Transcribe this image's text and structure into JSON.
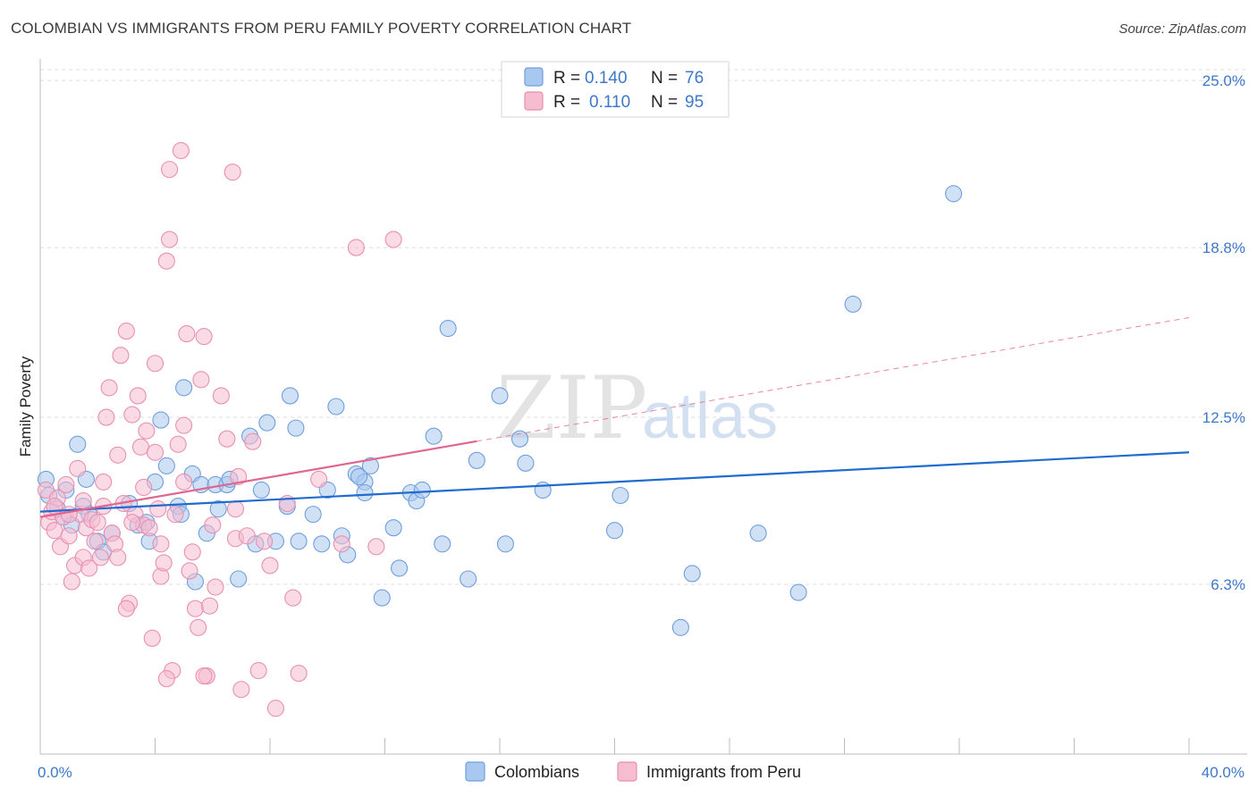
{
  "title": "COLOMBIAN VS IMMIGRANTS FROM PERU FAMILY POVERTY CORRELATION CHART",
  "source": "Source: ZipAtlas.com",
  "watermark": {
    "part1": "ZIP",
    "part2": "atlas"
  },
  "colors": {
    "blue_fill": "#a9c8ef",
    "blue_stroke": "#6f9edd",
    "blue_line": "#1f6bd0",
    "pink_fill": "#f6bcd0",
    "pink_stroke": "#e890b0",
    "pink_line": "#e0668f",
    "tick_text": "#3d78c9",
    "grid": "#dcdcdc"
  },
  "legend": {
    "rows": [
      {
        "r_label": "R =",
        "r_value": "0.140",
        "n_label": "N =",
        "n_value": "76"
      },
      {
        "r_label": "R =",
        "r_value": "0.110",
        "n_label": "N =",
        "n_value": "95"
      }
    ]
  },
  "chart_data": {
    "type": "scatter",
    "title": "COLOMBIAN VS IMMIGRANTS FROM PERU FAMILY POVERTY CORRELATION CHART",
    "xlabel": "",
    "ylabel": "Family Poverty",
    "xlim": [
      0,
      40
    ],
    "ylim": [
      0,
      25.8
    ],
    "x_tick_labels": [
      "0.0%",
      "40.0%"
    ],
    "y_ticks": [
      6.3,
      12.5,
      18.8,
      25.0
    ],
    "y_tick_labels": [
      "6.3%",
      "12.5%",
      "18.8%",
      "25.0%"
    ],
    "grid": "horizontal-dashed",
    "legend_position": "top-center",
    "series": [
      {
        "name": "Colombians",
        "color": "blue",
        "trend": {
          "x0": 0,
          "y0": 9.0,
          "x1": 40,
          "y1": 11.2,
          "dashed_from": null
        },
        "points": [
          [
            0.2,
            10.2
          ],
          [
            0.6,
            9.1
          ],
          [
            0.8,
            8.8
          ],
          [
            1.1,
            8.5
          ],
          [
            1.3,
            11.5
          ],
          [
            1.5,
            9.2
          ],
          [
            1.6,
            10.2
          ],
          [
            1.7,
            8.9
          ],
          [
            2.0,
            7.9
          ],
          [
            2.2,
            7.5
          ],
          [
            2.5,
            8.2
          ],
          [
            3.1,
            9.3
          ],
          [
            3.4,
            8.5
          ],
          [
            3.7,
            8.6
          ],
          [
            3.8,
            7.9
          ],
          [
            4.0,
            10.1
          ],
          [
            4.2,
            12.4
          ],
          [
            4.4,
            10.7
          ],
          [
            4.8,
            9.2
          ],
          [
            4.9,
            8.9
          ],
          [
            5.0,
            13.6
          ],
          [
            5.3,
            10.4
          ],
          [
            5.4,
            6.4
          ],
          [
            5.6,
            10.0
          ],
          [
            5.8,
            8.2
          ],
          [
            6.1,
            10.0
          ],
          [
            6.2,
            9.1
          ],
          [
            6.5,
            10.0
          ],
          [
            6.6,
            10.2
          ],
          [
            6.9,
            6.5
          ],
          [
            7.3,
            11.8
          ],
          [
            7.5,
            7.8
          ],
          [
            7.7,
            9.8
          ],
          [
            7.9,
            12.3
          ],
          [
            8.2,
            7.9
          ],
          [
            8.6,
            9.2
          ],
          [
            8.7,
            13.3
          ],
          [
            8.9,
            12.1
          ],
          [
            9.0,
            7.9
          ],
          [
            9.5,
            8.9
          ],
          [
            9.8,
            7.8
          ],
          [
            10.0,
            9.8
          ],
          [
            10.3,
            12.9
          ],
          [
            10.5,
            8.1
          ],
          [
            10.7,
            7.4
          ],
          [
            11.0,
            10.4
          ],
          [
            11.3,
            10.1
          ],
          [
            11.5,
            10.7
          ],
          [
            11.1,
            10.3
          ],
          [
            11.3,
            9.7
          ],
          [
            11.9,
            5.8
          ],
          [
            12.3,
            8.4
          ],
          [
            12.5,
            6.9
          ],
          [
            12.9,
            9.7
          ],
          [
            13.1,
            9.4
          ],
          [
            13.3,
            9.8
          ],
          [
            13.7,
            11.8
          ],
          [
            14.0,
            7.8
          ],
          [
            14.2,
            15.8
          ],
          [
            14.9,
            6.5
          ],
          [
            15.2,
            10.9
          ],
          [
            16.0,
            13.3
          ],
          [
            16.2,
            7.8
          ],
          [
            16.7,
            11.7
          ],
          [
            16.9,
            10.8
          ],
          [
            17.5,
            9.8
          ],
          [
            20.0,
            8.3
          ],
          [
            20.2,
            9.6
          ],
          [
            22.3,
            4.7
          ],
          [
            22.7,
            6.7
          ],
          [
            25.0,
            8.2
          ],
          [
            26.4,
            6.0
          ],
          [
            28.3,
            16.7
          ],
          [
            31.8,
            20.8
          ],
          [
            0.3,
            9.6
          ],
          [
            0.9,
            9.8
          ]
        ]
      },
      {
        "name": "Immigrants from Peru",
        "color": "pink",
        "trend": {
          "x0": 0,
          "y0": 8.8,
          "x1": 40,
          "y1": 16.2,
          "dashed_from": 15.2
        },
        "points": [
          [
            0.2,
            9.8
          ],
          [
            0.3,
            8.6
          ],
          [
            0.4,
            9.0
          ],
          [
            0.5,
            8.3
          ],
          [
            0.6,
            9.5
          ],
          [
            0.7,
            7.7
          ],
          [
            0.8,
            8.8
          ],
          [
            0.9,
            10.0
          ],
          [
            1.0,
            8.1
          ],
          [
            1.1,
            6.4
          ],
          [
            1.2,
            7.0
          ],
          [
            1.3,
            10.6
          ],
          [
            1.4,
            8.9
          ],
          [
            1.5,
            7.3
          ],
          [
            1.6,
            8.4
          ],
          [
            1.7,
            6.9
          ],
          [
            1.8,
            8.7
          ],
          [
            1.9,
            7.9
          ],
          [
            2.0,
            8.6
          ],
          [
            2.1,
            7.3
          ],
          [
            2.2,
            10.1
          ],
          [
            2.3,
            12.5
          ],
          [
            2.4,
            13.6
          ],
          [
            2.5,
            8.2
          ],
          [
            2.6,
            7.8
          ],
          [
            2.7,
            7.3
          ],
          [
            2.8,
            14.8
          ],
          [
            2.9,
            9.3
          ],
          [
            3.0,
            15.7
          ],
          [
            3.1,
            5.6
          ],
          [
            3.2,
            12.6
          ],
          [
            3.3,
            8.9
          ],
          [
            3.4,
            13.3
          ],
          [
            3.5,
            11.4
          ],
          [
            3.6,
            8.5
          ],
          [
            3.7,
            12.0
          ],
          [
            3.8,
            8.4
          ],
          [
            3.9,
            4.3
          ],
          [
            4.0,
            14.5
          ],
          [
            4.1,
            9.1
          ],
          [
            4.2,
            6.6
          ],
          [
            4.3,
            7.1
          ],
          [
            4.4,
            18.3
          ],
          [
            4.5,
            21.7
          ],
          [
            4.6,
            3.1
          ],
          [
            4.7,
            8.9
          ],
          [
            4.8,
            11.5
          ],
          [
            4.9,
            22.4
          ],
          [
            5.0,
            10.1
          ],
          [
            5.1,
            15.6
          ],
          [
            5.2,
            6.8
          ],
          [
            5.3,
            7.5
          ],
          [
            5.4,
            5.4
          ],
          [
            5.5,
            4.7
          ],
          [
            5.6,
            13.9
          ],
          [
            5.7,
            15.5
          ],
          [
            5.8,
            2.9
          ],
          [
            5.9,
            5.5
          ],
          [
            6.0,
            8.5
          ],
          [
            6.1,
            6.2
          ],
          [
            6.3,
            13.3
          ],
          [
            6.5,
            11.7
          ],
          [
            6.7,
            21.6
          ],
          [
            6.8,
            8.0
          ],
          [
            6.9,
            10.3
          ],
          [
            7.0,
            2.4
          ],
          [
            7.2,
            8.1
          ],
          [
            7.4,
            11.6
          ],
          [
            7.6,
            3.1
          ],
          [
            7.8,
            7.9
          ],
          [
            8.0,
            7.0
          ],
          [
            8.2,
            1.7
          ],
          [
            8.6,
            9.3
          ],
          [
            8.8,
            5.8
          ],
          [
            9.0,
            3.0
          ],
          [
            9.7,
            10.2
          ],
          [
            10.5,
            7.8
          ],
          [
            11.0,
            18.8
          ],
          [
            11.7,
            7.7
          ],
          [
            12.3,
            19.1
          ],
          [
            4.5,
            19.1
          ],
          [
            4.0,
            11.2
          ],
          [
            5.0,
            12.2
          ],
          [
            3.2,
            8.6
          ],
          [
            2.7,
            11.1
          ],
          [
            0.5,
            9.2
          ],
          [
            1.0,
            8.9
          ],
          [
            1.5,
            9.4
          ],
          [
            2.2,
            9.2
          ],
          [
            3.6,
            9.9
          ],
          [
            4.2,
            7.8
          ],
          [
            5.7,
            2.9
          ],
          [
            4.4,
            2.8
          ],
          [
            3.0,
            5.4
          ],
          [
            6.8,
            9.1
          ]
        ]
      }
    ]
  },
  "bottom_legend": [
    {
      "label": "Colombians",
      "color": "blue"
    },
    {
      "label": "Immigrants from Peru",
      "color": "pink"
    }
  ]
}
